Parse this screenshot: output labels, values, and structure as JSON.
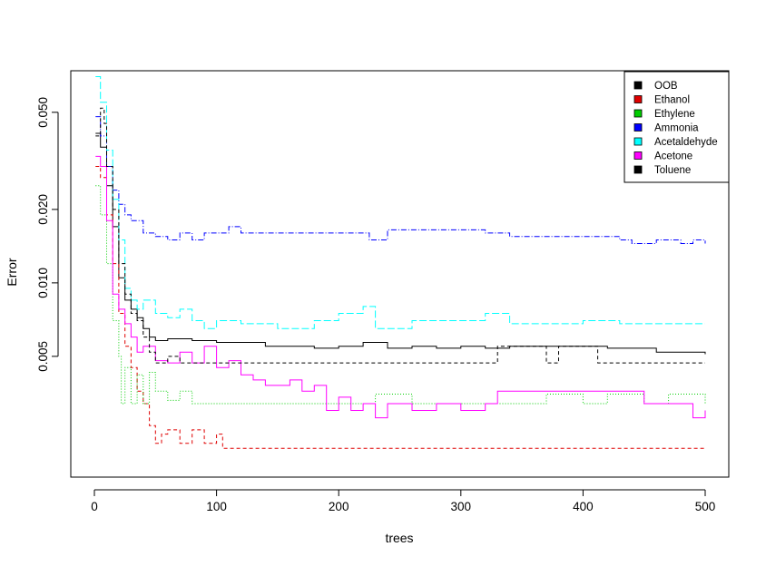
{
  "chart_data": {
    "type": "line",
    "title": "",
    "xlabel": "trees",
    "ylabel": "Error",
    "xlim": [
      0,
      500
    ],
    "ylim": [
      0.0016,
      0.074
    ],
    "y_scale": "log",
    "x_ticks": [
      0,
      100,
      200,
      300,
      400,
      500
    ],
    "y_ticks": [
      0.005,
      0.01,
      0.02,
      0.05
    ],
    "y_tick_labels": [
      "0.005",
      "0.010",
      "0.020",
      "0.050"
    ],
    "legend_position": "top-right",
    "series": [
      {
        "name": "OOB",
        "color": "#000000",
        "dash": "solid",
        "points": [
          [
            1,
            0.041
          ],
          [
            5,
            0.036
          ],
          [
            10,
            0.025
          ],
          [
            15,
            0.017
          ],
          [
            20,
            0.0105
          ],
          [
            25,
            0.0085
          ],
          [
            30,
            0.0078
          ],
          [
            35,
            0.0072
          ],
          [
            40,
            0.0065
          ],
          [
            45,
            0.006
          ],
          [
            50,
            0.0058
          ],
          [
            60,
            0.0059
          ],
          [
            70,
            0.0059
          ],
          [
            80,
            0.0058
          ],
          [
            90,
            0.0058
          ],
          [
            100,
            0.0057
          ],
          [
            120,
            0.0057
          ],
          [
            140,
            0.0055
          ],
          [
            160,
            0.0055
          ],
          [
            180,
            0.0054
          ],
          [
            200,
            0.0055
          ],
          [
            220,
            0.0057
          ],
          [
            240,
            0.0054
          ],
          [
            260,
            0.0055
          ],
          [
            280,
            0.0054
          ],
          [
            300,
            0.0055
          ],
          [
            320,
            0.0054
          ],
          [
            340,
            0.0055
          ],
          [
            360,
            0.0055
          ],
          [
            380,
            0.0055
          ],
          [
            400,
            0.0055
          ],
          [
            420,
            0.0054
          ],
          [
            440,
            0.0054
          ],
          [
            460,
            0.0052
          ],
          [
            480,
            0.0052
          ],
          [
            500,
            0.0051
          ]
        ]
      },
      {
        "name": "Ethanol",
        "color": "#df0000",
        "dash": "4,3",
        "points": [
          [
            1,
            0.03
          ],
          [
            5,
            0.027
          ],
          [
            10,
            0.019
          ],
          [
            15,
            0.012
          ],
          [
            20,
            0.0075
          ],
          [
            25,
            0.0055
          ],
          [
            30,
            0.0045
          ],
          [
            35,
            0.0036
          ],
          [
            40,
            0.0032
          ],
          [
            45,
            0.0026
          ],
          [
            50,
            0.0022
          ],
          [
            55,
            0.0024
          ],
          [
            60,
            0.0025
          ],
          [
            70,
            0.0022
          ],
          [
            80,
            0.0025
          ],
          [
            90,
            0.0022
          ],
          [
            100,
            0.0024
          ],
          [
            105,
            0.0021
          ],
          [
            150,
            0.0021
          ],
          [
            200,
            0.0021
          ],
          [
            300,
            0.0021
          ],
          [
            400,
            0.0021
          ],
          [
            500,
            0.0021
          ]
        ]
      },
      {
        "name": "Ethylene",
        "color": "#00cd00",
        "dash": "1,2",
        "points": [
          [
            1,
            0.025
          ],
          [
            5,
            0.019
          ],
          [
            10,
            0.012
          ],
          [
            15,
            0.007
          ],
          [
            20,
            0.005
          ],
          [
            22,
            0.0032
          ],
          [
            25,
            0.0045
          ],
          [
            30,
            0.0032
          ],
          [
            35,
            0.0042
          ],
          [
            40,
            0.0032
          ],
          [
            45,
            0.0043
          ],
          [
            50,
            0.0036
          ],
          [
            60,
            0.0033
          ],
          [
            70,
            0.0036
          ],
          [
            80,
            0.0032
          ],
          [
            100,
            0.0032
          ],
          [
            150,
            0.0032
          ],
          [
            200,
            0.0032
          ],
          [
            230,
            0.0035
          ],
          [
            260,
            0.0032
          ],
          [
            300,
            0.0032
          ],
          [
            350,
            0.0032
          ],
          [
            370,
            0.0035
          ],
          [
            400,
            0.0032
          ],
          [
            420,
            0.0035
          ],
          [
            450,
            0.0032
          ],
          [
            470,
            0.0035
          ],
          [
            500,
            0.0032
          ]
        ]
      },
      {
        "name": "Ammonia",
        "color": "#0000ff",
        "dash": "6,2,1,2",
        "points": [
          [
            1,
            0.048
          ],
          [
            5,
            0.04
          ],
          [
            10,
            0.03
          ],
          [
            15,
            0.024
          ],
          [
            20,
            0.021
          ],
          [
            25,
            0.019
          ],
          [
            30,
            0.018
          ],
          [
            40,
            0.016
          ],
          [
            50,
            0.0155
          ],
          [
            60,
            0.015
          ],
          [
            70,
            0.016
          ],
          [
            80,
            0.015
          ],
          [
            90,
            0.016
          ],
          [
            100,
            0.016
          ],
          [
            110,
            0.017
          ],
          [
            120,
            0.016
          ],
          [
            150,
            0.016
          ],
          [
            200,
            0.016
          ],
          [
            225,
            0.015
          ],
          [
            240,
            0.0165
          ],
          [
            260,
            0.0165
          ],
          [
            300,
            0.0165
          ],
          [
            320,
            0.016
          ],
          [
            340,
            0.0155
          ],
          [
            360,
            0.0155
          ],
          [
            400,
            0.0155
          ],
          [
            430,
            0.015
          ],
          [
            440,
            0.0145
          ],
          [
            460,
            0.015
          ],
          [
            480,
            0.0145
          ],
          [
            490,
            0.015
          ],
          [
            500,
            0.0145
          ]
        ]
      },
      {
        "name": "Acetaldehyde",
        "color": "#00ffff",
        "dash": "8,3",
        "points": [
          [
            1,
            0.07
          ],
          [
            5,
            0.055
          ],
          [
            10,
            0.035
          ],
          [
            15,
            0.022
          ],
          [
            20,
            0.015
          ],
          [
            25,
            0.0095
          ],
          [
            30,
            0.0085
          ],
          [
            35,
            0.0078
          ],
          [
            40,
            0.0085
          ],
          [
            50,
            0.0075
          ],
          [
            60,
            0.0072
          ],
          [
            70,
            0.0078
          ],
          [
            80,
            0.007
          ],
          [
            90,
            0.0065
          ],
          [
            100,
            0.007
          ],
          [
            120,
            0.0068
          ],
          [
            150,
            0.0065
          ],
          [
            180,
            0.007
          ],
          [
            200,
            0.0075
          ],
          [
            220,
            0.008
          ],
          [
            230,
            0.0065
          ],
          [
            260,
            0.007
          ],
          [
            300,
            0.007
          ],
          [
            320,
            0.0075
          ],
          [
            340,
            0.0068
          ],
          [
            380,
            0.0068
          ],
          [
            400,
            0.007
          ],
          [
            430,
            0.0068
          ],
          [
            460,
            0.0068
          ],
          [
            500,
            0.0068
          ]
        ]
      },
      {
        "name": "Acetone",
        "color": "#ff00ff",
        "dash": "solid",
        "points": [
          [
            1,
            0.033
          ],
          [
            5,
            0.03
          ],
          [
            10,
            0.018
          ],
          [
            15,
            0.009
          ],
          [
            20,
            0.0078
          ],
          [
            25,
            0.0068
          ],
          [
            30,
            0.006
          ],
          [
            35,
            0.0052
          ],
          [
            40,
            0.0055
          ],
          [
            50,
            0.0048
          ],
          [
            60,
            0.0047
          ],
          [
            70,
            0.0052
          ],
          [
            80,
            0.0047
          ],
          [
            90,
            0.0055
          ],
          [
            100,
            0.0045
          ],
          [
            110,
            0.0048
          ],
          [
            120,
            0.0042
          ],
          [
            130,
            0.004
          ],
          [
            140,
            0.0038
          ],
          [
            150,
            0.0038
          ],
          [
            160,
            0.004
          ],
          [
            170,
            0.0036
          ],
          [
            180,
            0.0038
          ],
          [
            190,
            0.003
          ],
          [
            200,
            0.0034
          ],
          [
            210,
            0.003
          ],
          [
            220,
            0.0032
          ],
          [
            230,
            0.0028
          ],
          [
            240,
            0.0032
          ],
          [
            260,
            0.003
          ],
          [
            280,
            0.0032
          ],
          [
            300,
            0.003
          ],
          [
            320,
            0.0032
          ],
          [
            330,
            0.0036
          ],
          [
            340,
            0.0036
          ],
          [
            360,
            0.0036
          ],
          [
            400,
            0.0036
          ],
          [
            440,
            0.0036
          ],
          [
            450,
            0.0032
          ],
          [
            480,
            0.0032
          ],
          [
            490,
            0.0028
          ],
          [
            500,
            0.003
          ]
        ]
      },
      {
        "name": "Toluene",
        "color": "#000000",
        "dash": "4,3",
        "points": [
          [
            1,
            0.04
          ],
          [
            5,
            0.052
          ],
          [
            8,
            0.045
          ],
          [
            10,
            0.03
          ],
          [
            15,
            0.02
          ],
          [
            20,
            0.012
          ],
          [
            25,
            0.009
          ],
          [
            30,
            0.0075
          ],
          [
            35,
            0.007
          ],
          [
            40,
            0.006
          ],
          [
            45,
            0.0052
          ],
          [
            50,
            0.0047
          ],
          [
            60,
            0.005
          ],
          [
            70,
            0.0047
          ],
          [
            100,
            0.0047
          ],
          [
            200,
            0.0047
          ],
          [
            300,
            0.0047
          ],
          [
            325,
            0.0047
          ],
          [
            330,
            0.0055
          ],
          [
            360,
            0.0055
          ],
          [
            370,
            0.0047
          ],
          [
            380,
            0.0055
          ],
          [
            410,
            0.0055
          ],
          [
            412,
            0.0047
          ],
          [
            450,
            0.0047
          ],
          [
            500,
            0.0047
          ]
        ]
      }
    ]
  }
}
